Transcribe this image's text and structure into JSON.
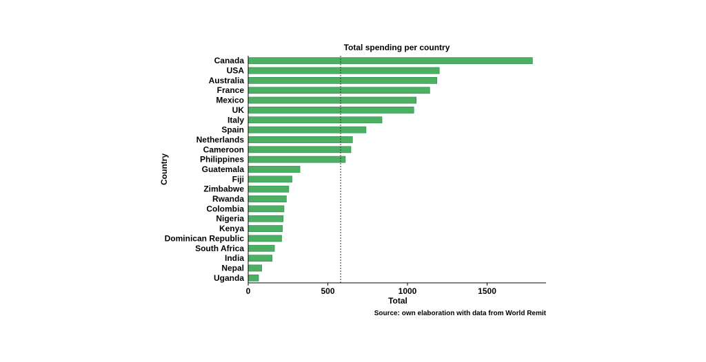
{
  "chart_data": {
    "type": "bar",
    "orientation": "horizontal",
    "title": "Total spending per country",
    "xlabel": "Total",
    "ylabel": "Country",
    "caption": "Source: own elaboration with data from World Remit",
    "categories": [
      "Canada",
      "USA",
      "Australia",
      "France",
      "Mexico",
      "UK",
      "Italy",
      "Spain",
      "Netherlands",
      "Cameroon",
      "Philippines",
      "Guatemala",
      "Fiji",
      "Zimbabwe",
      "Rwanda",
      "Colombia",
      "Nigeria",
      "Kenya",
      "Dominican Republic",
      "South Africa",
      "India",
      "Nepal",
      "Uganda"
    ],
    "values": [
      1785,
      1200,
      1185,
      1140,
      1055,
      1040,
      840,
      740,
      655,
      645,
      610,
      325,
      275,
      255,
      240,
      225,
      220,
      215,
      210,
      165,
      150,
      85,
      65
    ],
    "reference_line": {
      "value": 580,
      "style": "dotted"
    },
    "xlim": [
      0,
      1870
    ],
    "xticks": [
      0,
      500,
      1000,
      1500
    ],
    "bar_color": "#4caf63",
    "bar_edge_color": "#2e8b47",
    "grid": false,
    "legend": "none"
  }
}
